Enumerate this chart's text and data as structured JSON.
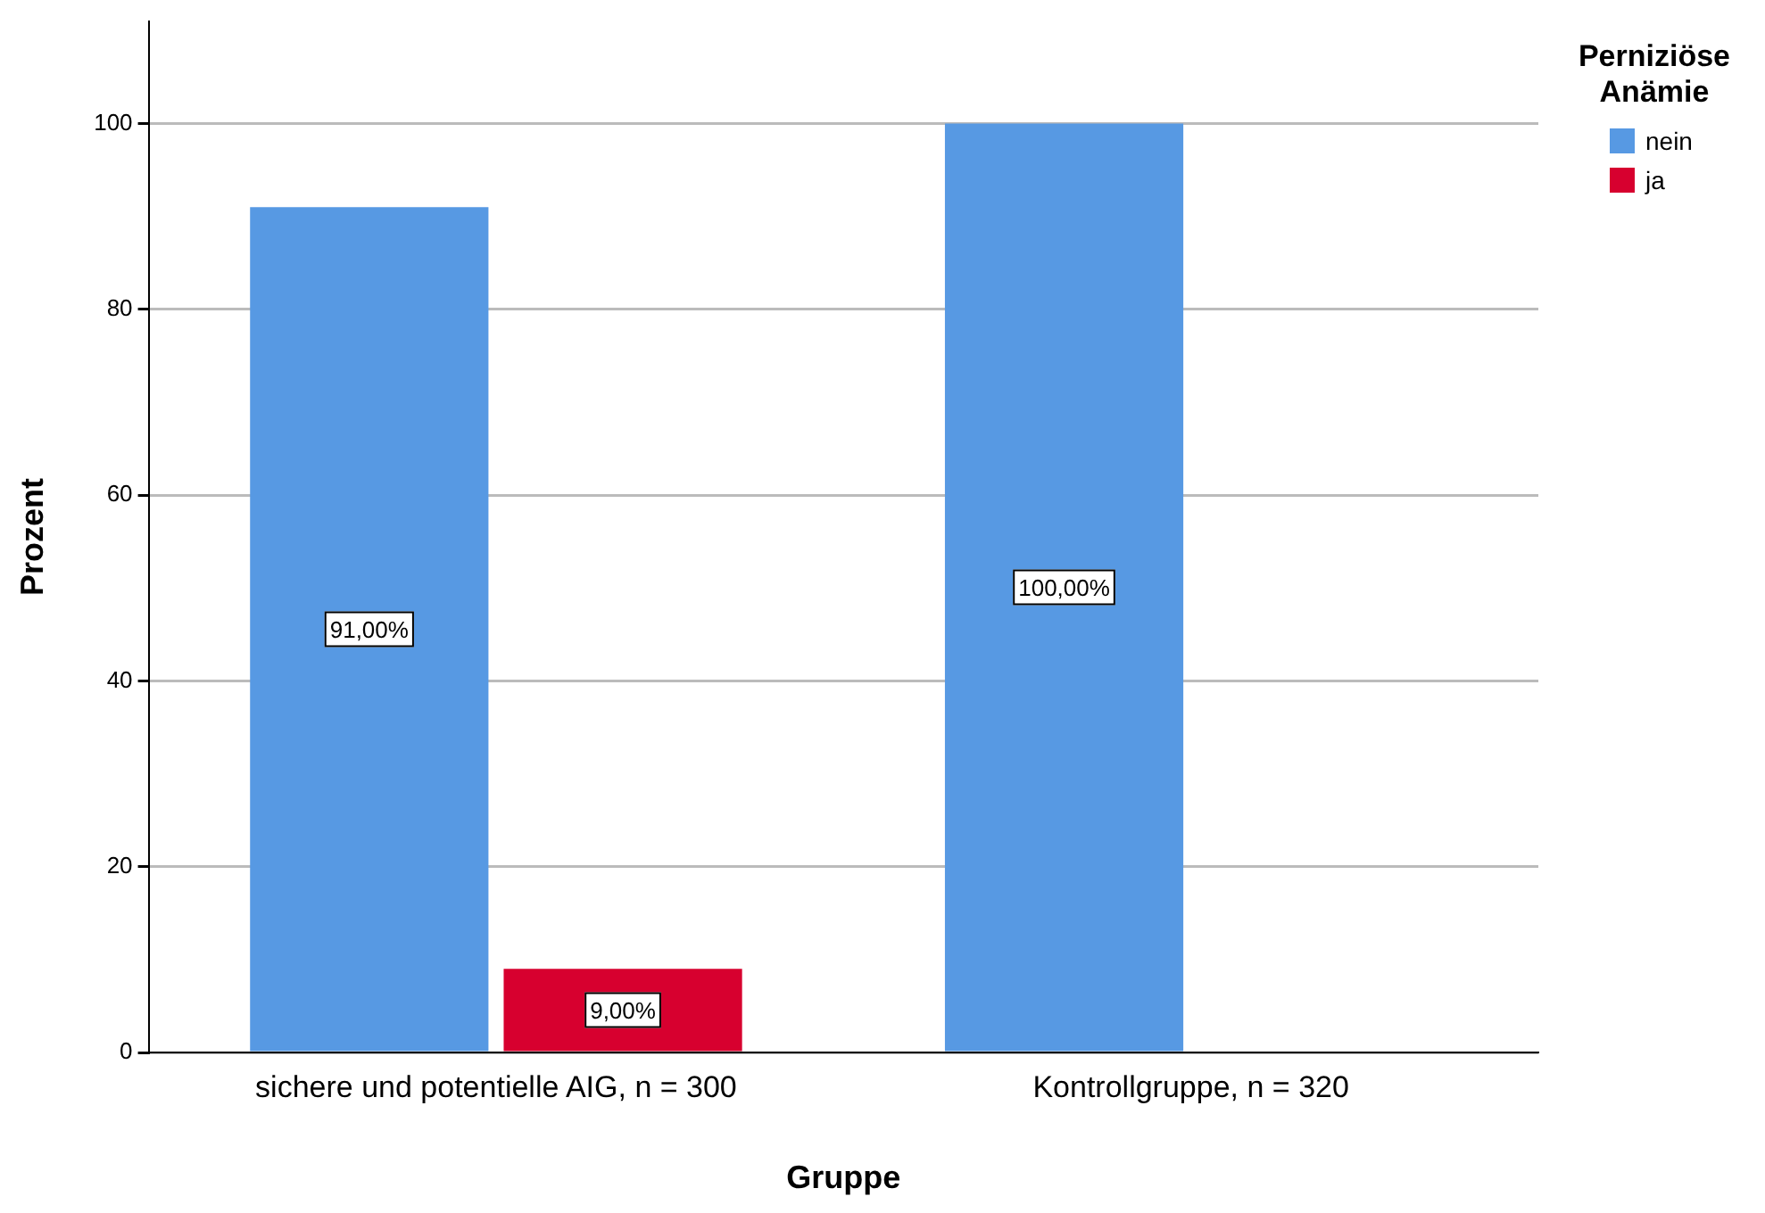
{
  "chart_data": {
    "type": "bar",
    "xlabel": "Gruppe",
    "ylabel": "Prozent",
    "legend_title": "Perniziöse Anämie",
    "categories": [
      "sichere und potentielle AIG, n = 300",
      "Kontrollgruppe, n = 320"
    ],
    "series": [
      {
        "name": "nein",
        "color": "#5799e3",
        "values": [
          91,
          100
        ],
        "value_labels": [
          "91,00%",
          "100,00%"
        ]
      },
      {
        "name": "ja",
        "color": "#d7002f",
        "values": [
          9,
          null
        ],
        "value_labels": [
          "9,00%",
          null
        ]
      }
    ],
    "ylim": [
      0,
      111
    ],
    "yticks": [
      0,
      20,
      40,
      60,
      80,
      100
    ],
    "grid": "y",
    "legend": "top right"
  }
}
